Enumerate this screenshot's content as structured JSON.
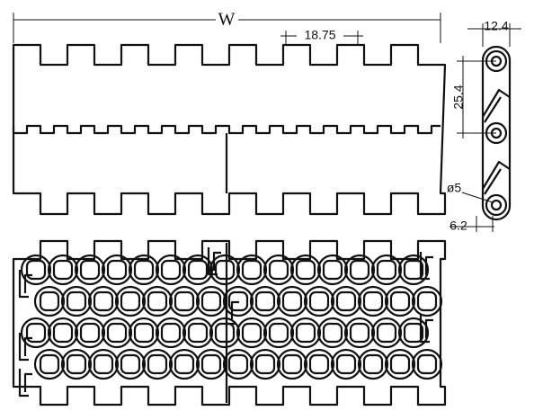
{
  "dimensions": {
    "width": "W",
    "pitch_spacing": "18.75",
    "thickness": "12.4",
    "pitch": "25.4",
    "hole": "ø5",
    "offset": "6.2"
  }
}
